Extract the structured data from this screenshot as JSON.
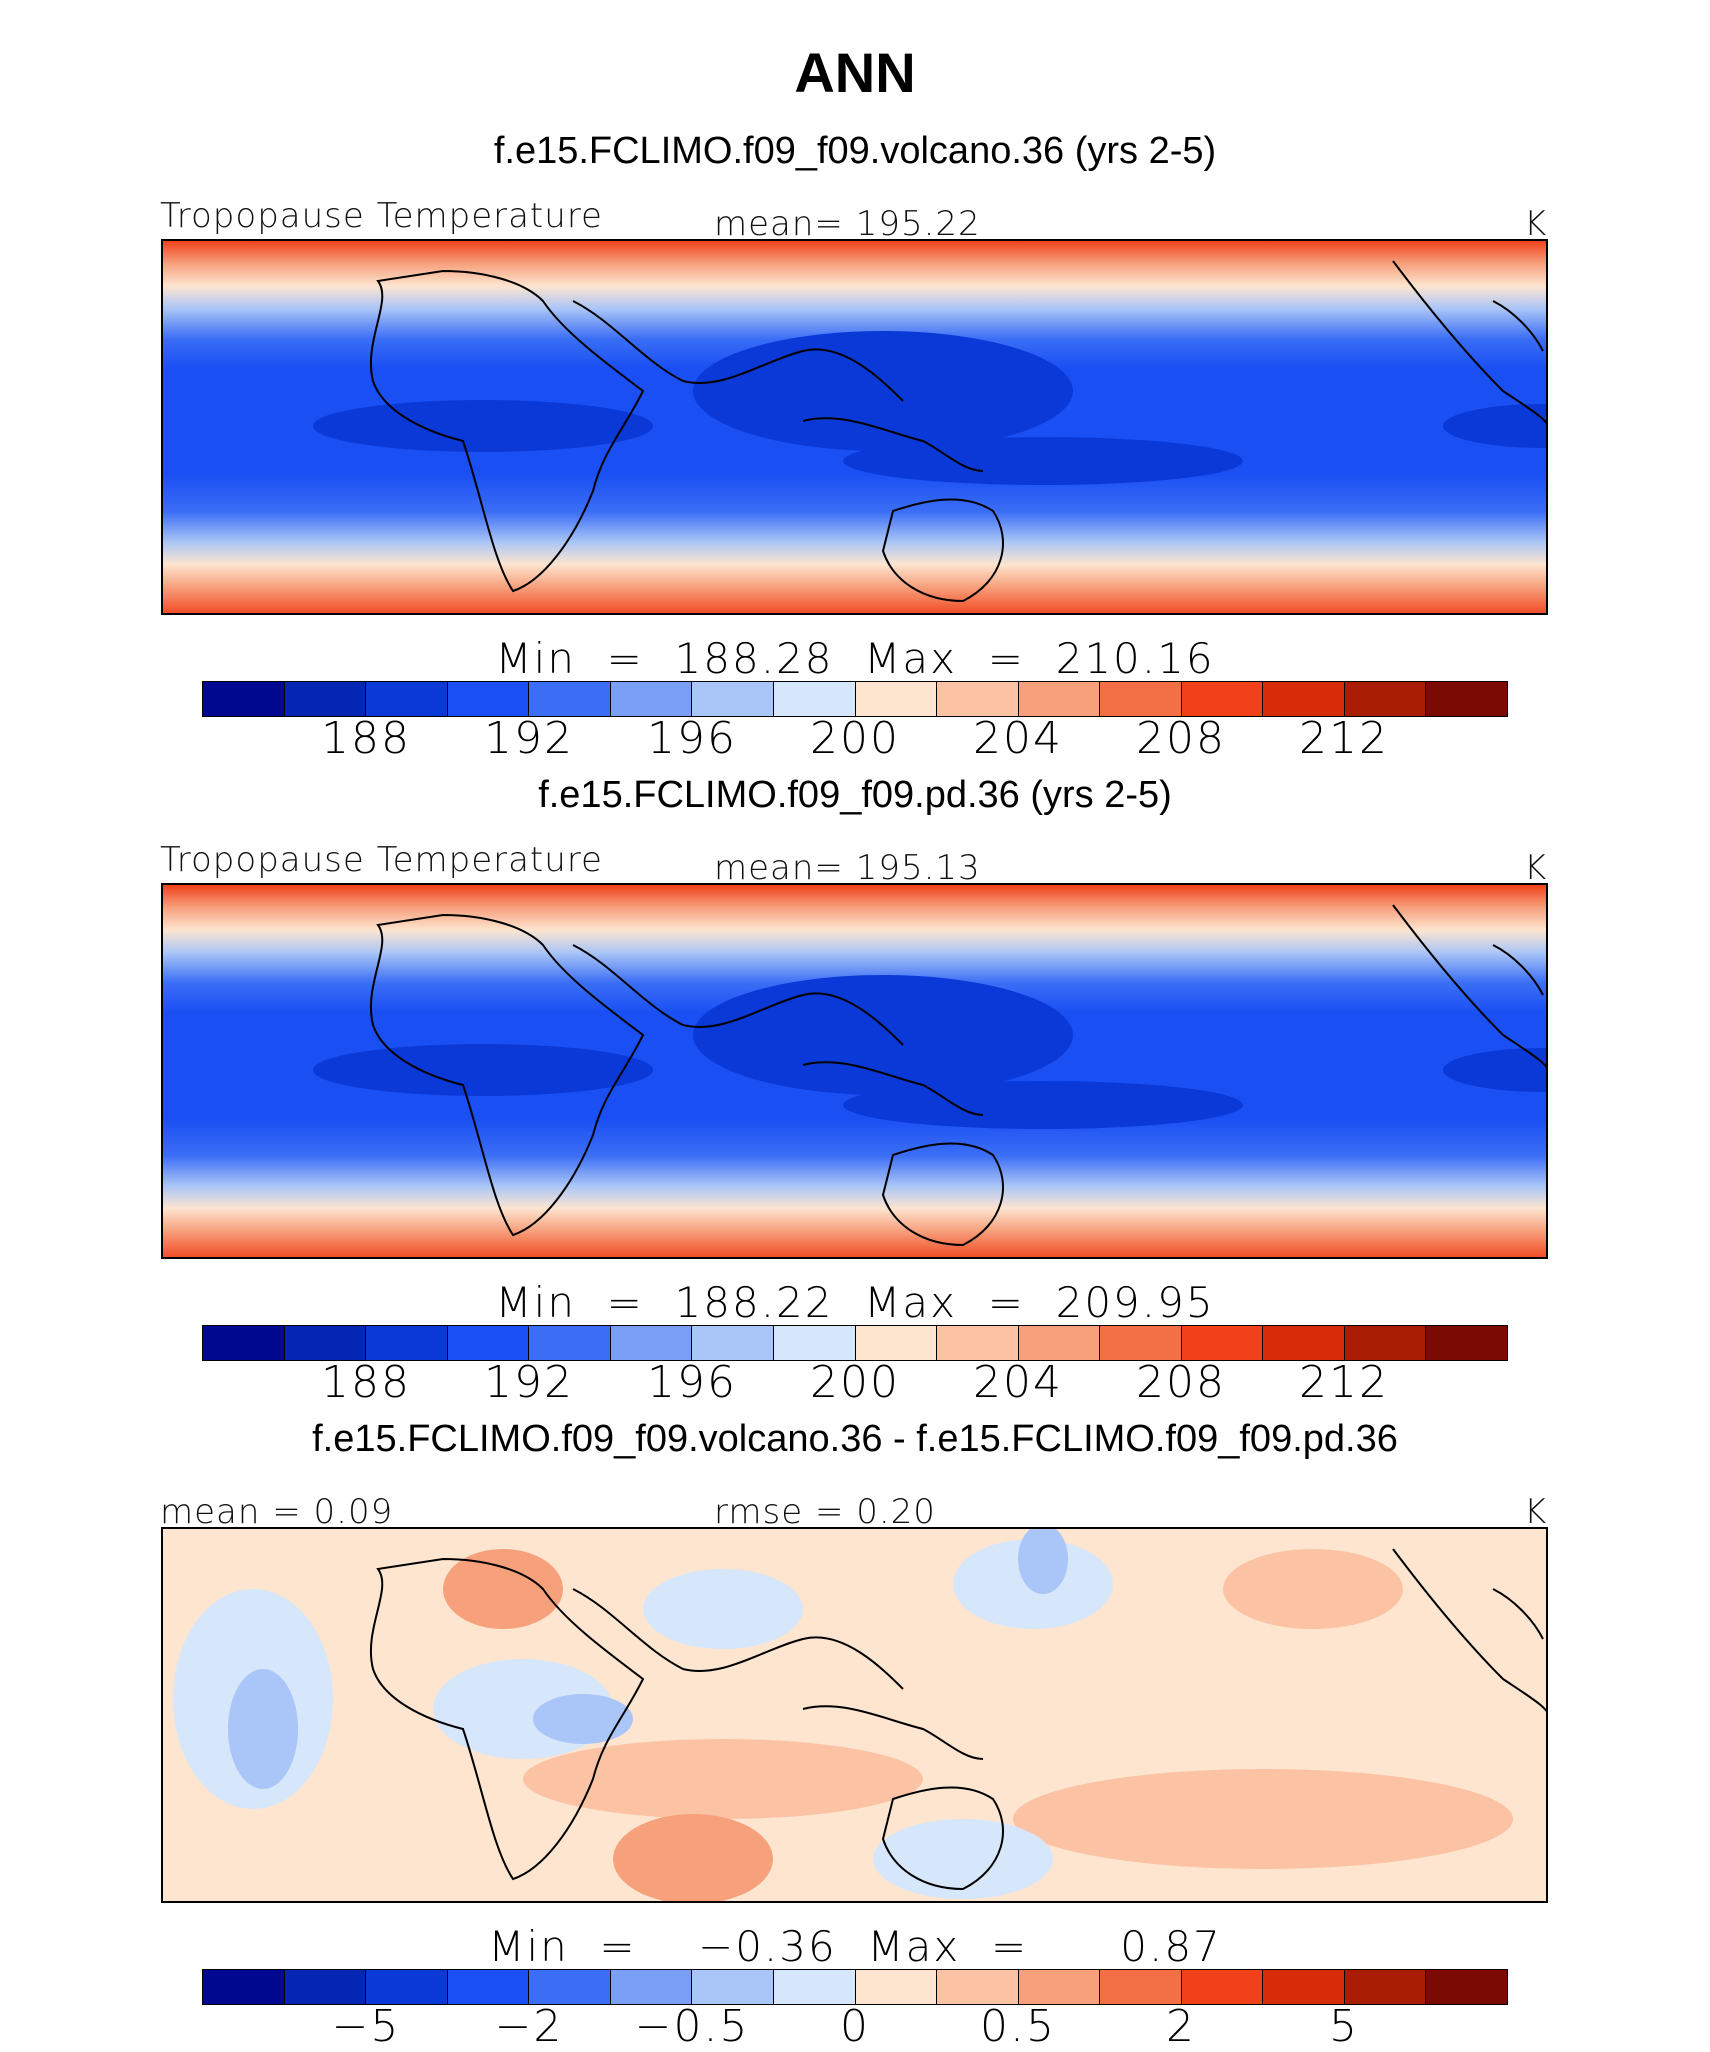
{
  "title": "ANN",
  "palette": [
    "#00088f",
    "#0426b3",
    "#0a39d8",
    "#1a4ff3",
    "#3b6ef5",
    "#7aa0f5",
    "#aac5f7",
    "#d6e6fb",
    "#fde5d0",
    "#fbc3a4",
    "#f7a07c",
    "#f36f45",
    "#f0411a",
    "#d62c0a",
    "#a81d04",
    "#7a0a02"
  ],
  "panels": [
    {
      "subtitle": "f.e15.FCLIMO.f09_f09.volcano.36 (yrs 2-5)",
      "left_label": "Tropopause Temperature",
      "center_label": "mean= 195.22",
      "units": "K",
      "minmax": "Min  =  188.28  Max  =  210.16",
      "ticks": [
        "188",
        "192",
        "196",
        "200",
        "204",
        "208",
        "212"
      ]
    },
    {
      "subtitle": "f.e15.FCLIMO.f09_f09.pd.36 (yrs 2-5)",
      "left_label": "Tropopause Temperature",
      "center_label": "mean= 195.13",
      "units": "K",
      "minmax": "Min  =  188.22  Max  =  209.95",
      "ticks": [
        "188",
        "192",
        "196",
        "200",
        "204",
        "208",
        "212"
      ]
    },
    {
      "subtitle": "f.e15.FCLIMO.f09_f09.volcano.36 - f.e15.FCLIMO.f09_f09.pd.36",
      "left_label": "mean  =     0.09",
      "center_label": "rmse  =     0.20",
      "units": "K",
      "minmax": "Min  =    −0.36  Max  =      0.87",
      "ticks": [
        "−5",
        "−2",
        "−0.5",
        "0",
        "0.5",
        "2",
        "5"
      ]
    }
  ]
}
